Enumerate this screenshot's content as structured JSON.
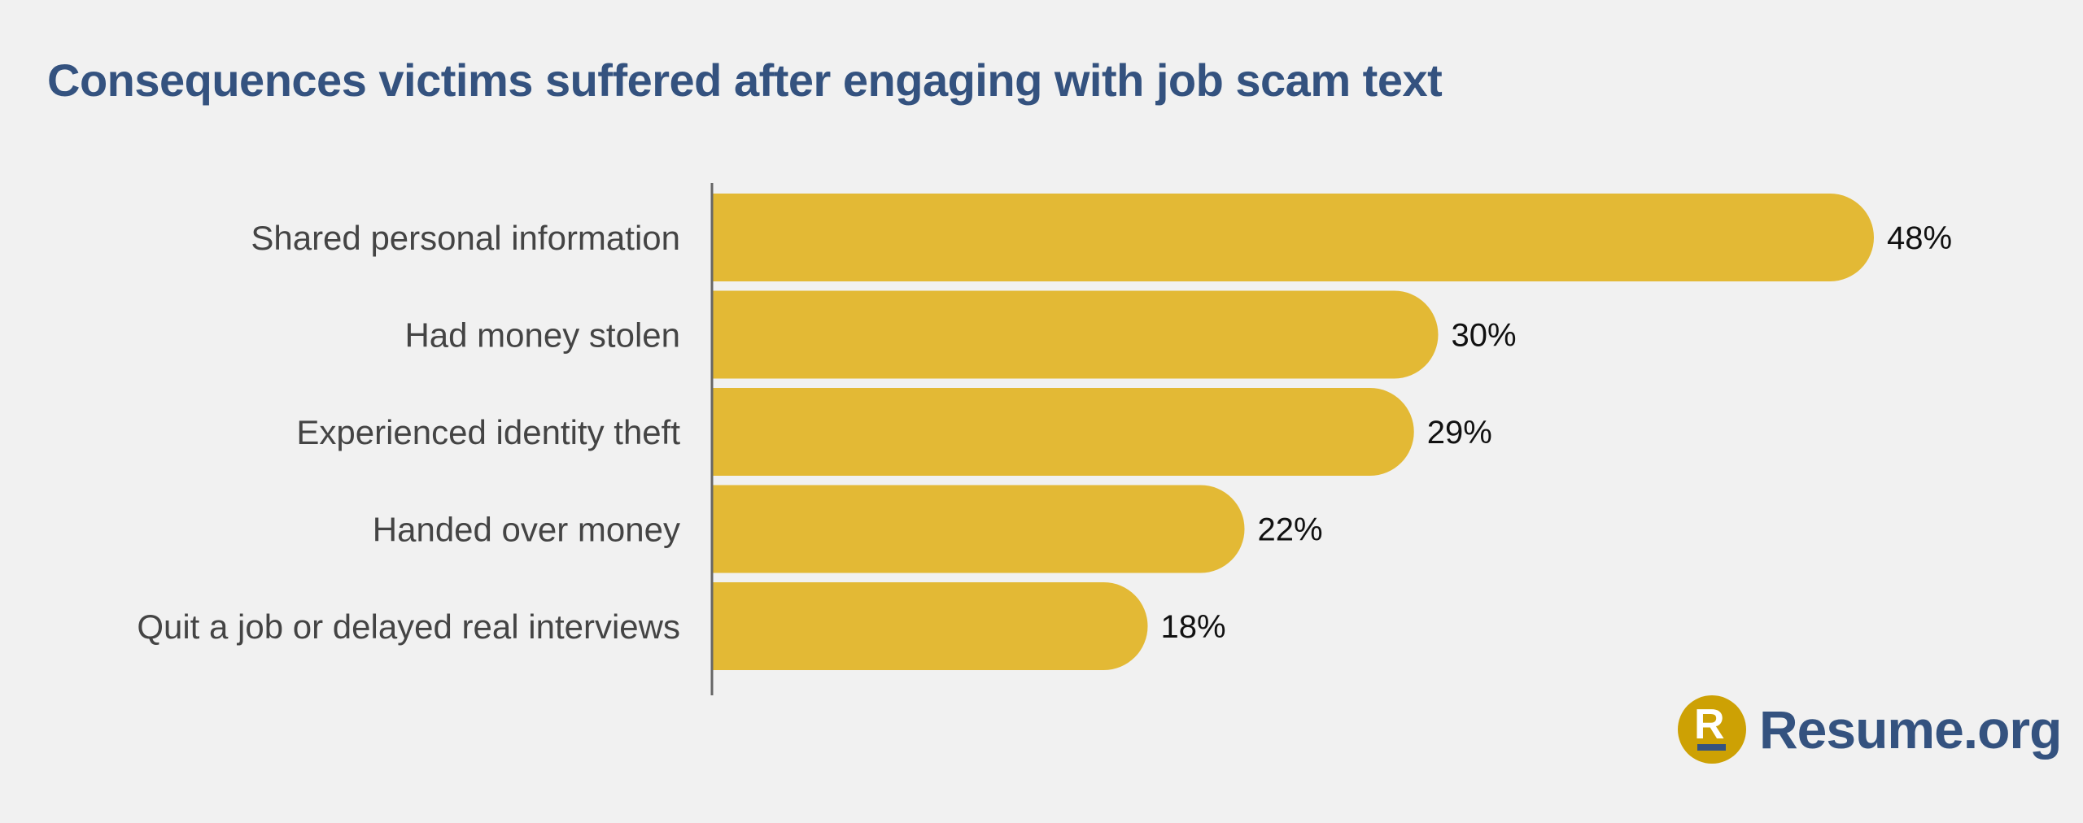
{
  "chart_data": {
    "type": "bar",
    "orientation": "horizontal",
    "title": "Consequences victims suffered after engaging with job scam text",
    "categories": [
      "Shared personal information",
      "Had money stolen",
      "Experienced identity theft",
      "Handed over money",
      "Quit a job or delayed real interviews"
    ],
    "values": [
      48,
      30,
      29,
      22,
      18
    ],
    "value_labels": [
      "48%",
      "30%",
      "29%",
      "22%",
      "18%"
    ],
    "xlabel": "",
    "ylabel": "",
    "xlim": [
      0,
      48
    ],
    "grid": false,
    "bar_color": "#e3b935",
    "title_color": "#34527f"
  },
  "brand": {
    "name": "Resume.org",
    "mark": "R",
    "color": "#34527f",
    "mark_color": "#cda104"
  }
}
